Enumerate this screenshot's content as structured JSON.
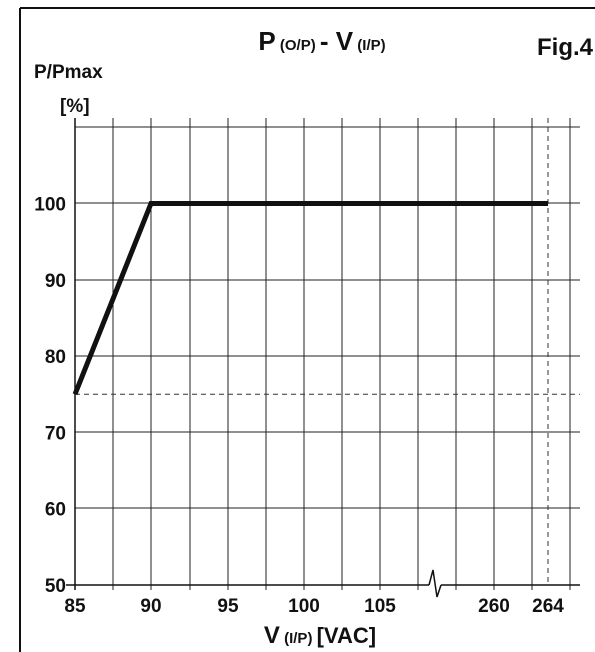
{
  "figure_label": "Fig.4",
  "chart_data": {
    "type": "line",
    "title_parts": [
      {
        "text": "P",
        "size": "big"
      },
      {
        "text": " (O/P) ",
        "size": "small"
      },
      {
        "text": "- V",
        "size": "big"
      },
      {
        "text": " (I/P)",
        "size": "small"
      }
    ],
    "ylabel": "P/Pmax",
    "yunit": "[%]",
    "xlabel_parts": [
      {
        "text": "V",
        "size": "big"
      },
      {
        "text": " (I/P) ",
        "size": "small"
      },
      {
        "text": "[VAC]",
        "size": "big"
      }
    ],
    "x_tick_labels": [
      "85",
      "90",
      "95",
      "100",
      "105",
      "260",
      "264"
    ],
    "y_tick_labels": [
      "50",
      "60",
      "70",
      "80",
      "90",
      "100"
    ],
    "ylim": [
      50,
      110
    ],
    "axis_break": "between 105 and 260",
    "grid": true,
    "series": [
      {
        "x": [
          "85",
          "90",
          "264"
        ],
        "y": [
          75,
          100,
          100
        ],
        "color": "#111111"
      }
    ],
    "reference_lines": [
      {
        "orientation": "horizontal",
        "value": 75,
        "style": "dashed"
      },
      {
        "orientation": "vertical",
        "value": "264",
        "style": "dashed"
      }
    ]
  }
}
